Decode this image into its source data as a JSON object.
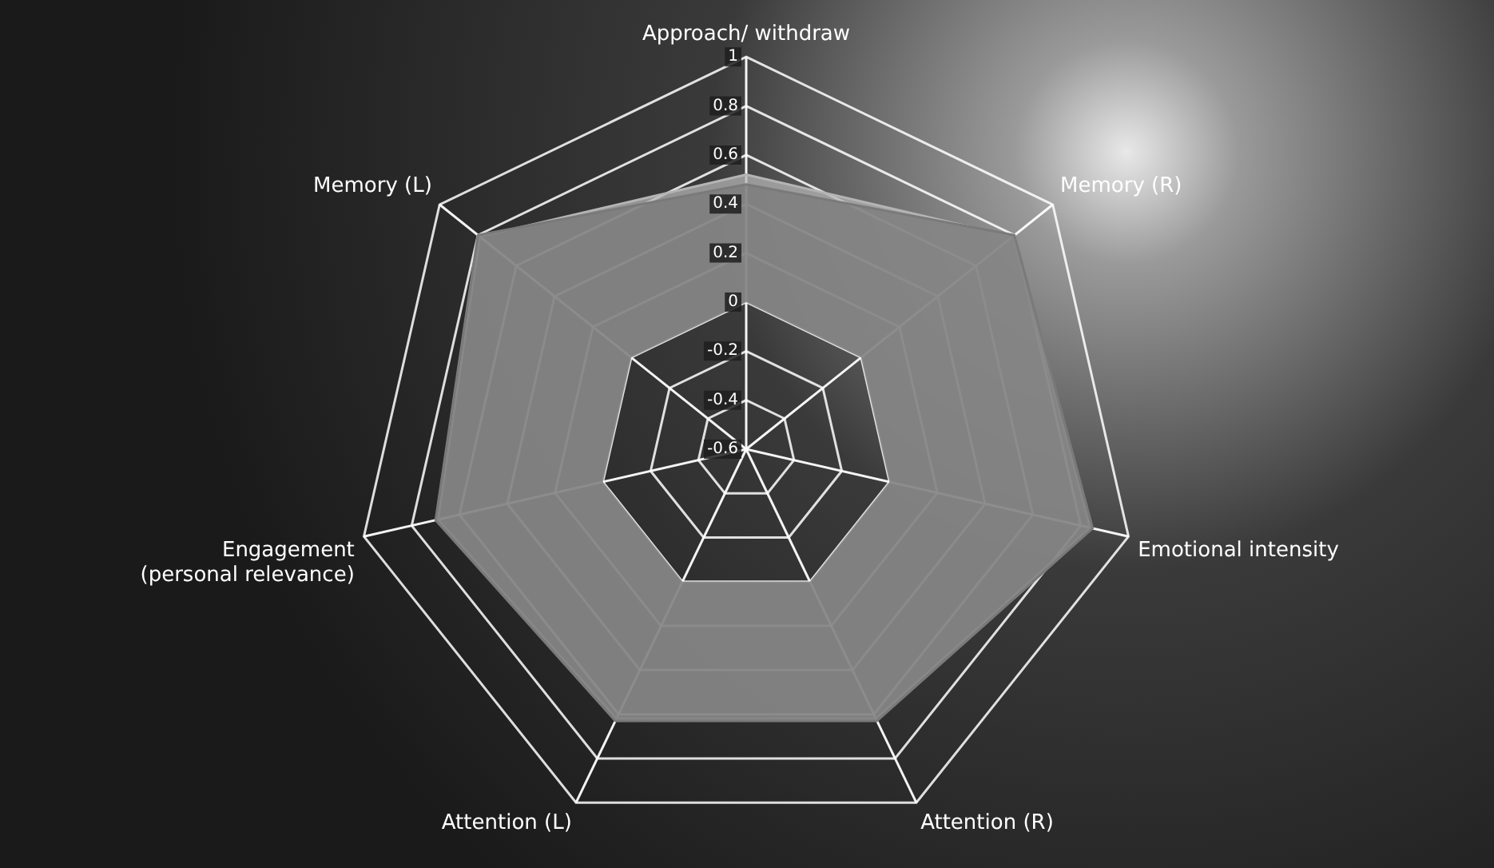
{
  "chart_data": {
    "type": "radar",
    "categories": [
      "Approach/ withdraw",
      "Memory (R)",
      "Emotional intensity",
      "Attention (R)",
      "Attention (L)",
      "Engagement (personal relevance)",
      "Memory (L)"
    ],
    "series": [
      {
        "color": "#7a7a7a",
        "values": [
          0.48,
          0.8,
          0.85,
          0.63,
          0.63,
          0.7,
          0.8
        ]
      },
      {
        "color": "#b4b4b4",
        "values": [
          0.52,
          0.79,
          0.84,
          0.62,
          0.62,
          0.69,
          0.79
        ]
      }
    ],
    "ylim": [
      -0.6,
      1
    ],
    "yticks": [
      -0.6,
      -0.4,
      -0.2,
      0,
      0.2,
      0.4,
      0.6,
      0.8,
      1
    ],
    "grid": true,
    "legend": false,
    "marker": "none"
  }
}
